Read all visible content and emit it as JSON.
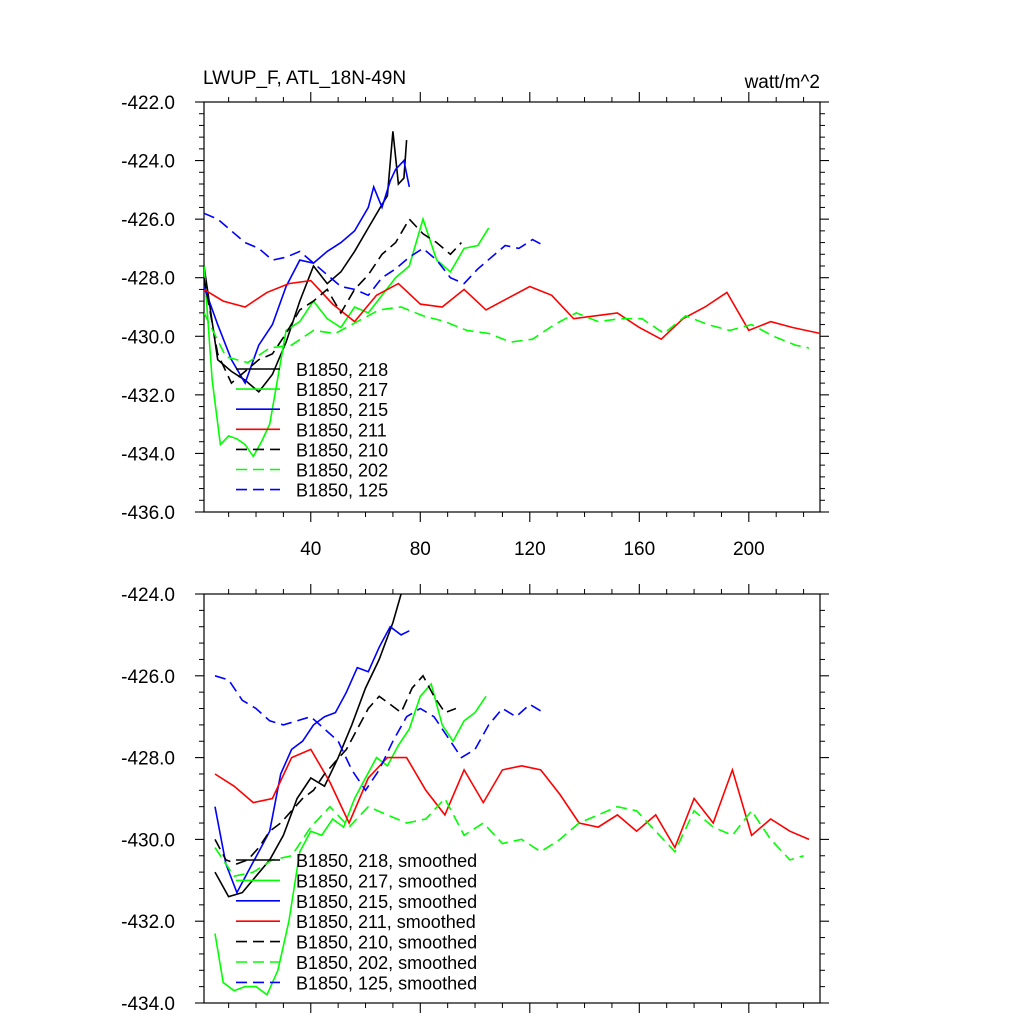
{
  "header": {
    "title": "LWUP_F, ATL_18N-49N",
    "units": "watt/m^2"
  },
  "chart_data": [
    {
      "type": "line",
      "xlim": [
        1,
        226
      ],
      "ylim": [
        -436.0,
        -422.0
      ],
      "xticks": [
        40,
        80,
        120,
        160,
        200
      ],
      "xtick_labels": [
        "40",
        "80",
        "120",
        "160",
        "200"
      ],
      "yticks": [
        -436.0,
        -434.0,
        -432.0,
        -430.0,
        -428.0,
        -426.0,
        -424.0,
        -422.0
      ],
      "ytick_labels": [
        "-436.0",
        "-434.0",
        "-432.0",
        "-430.0",
        "-428.0",
        "-426.0",
        "-424.0",
        "-422.0"
      ],
      "legend_position": "lower-left",
      "series": [
        {
          "name": "B1850, 218",
          "color": "#000000",
          "dash": "solid",
          "x": [
            1,
            6,
            11,
            16,
            21,
            26,
            31,
            36,
            41,
            46,
            51,
            56,
            61,
            66,
            68,
            70,
            72,
            74,
            75
          ],
          "y": [
            -427.6,
            -430.8,
            -431.2,
            -431.5,
            -431.9,
            -431.3,
            -430.2,
            -428.8,
            -427.6,
            -428.2,
            -427.8,
            -427.1,
            -426.3,
            -425.5,
            -425.2,
            -423.0,
            -424.8,
            -424.6,
            -423.3
          ]
        },
        {
          "name": "B1850, 217",
          "color": "#00ff00",
          "dash": "solid",
          "x": [
            1,
            4,
            7,
            10,
            13,
            16,
            19,
            22,
            25,
            28,
            31,
            36,
            41,
            46,
            51,
            56,
            61,
            66,
            71,
            76,
            81,
            86,
            91,
            96,
            101,
            105
          ],
          "y": [
            -427.6,
            -431.5,
            -433.7,
            -433.4,
            -433.5,
            -433.7,
            -434.1,
            -433.6,
            -433.0,
            -431.4,
            -429.8,
            -429.5,
            -428.8,
            -429.4,
            -429.7,
            -429.0,
            -429.2,
            -428.6,
            -428.0,
            -427.6,
            -426.0,
            -427.4,
            -427.8,
            -427.0,
            -426.9,
            -426.3
          ]
        },
        {
          "name": "B1850, 215",
          "color": "#0000ff",
          "dash": "solid",
          "x": [
            1,
            6,
            11,
            16,
            21,
            26,
            31,
            36,
            41,
            46,
            51,
            56,
            61,
            63,
            66,
            69,
            71,
            74,
            76
          ],
          "y": [
            -428.3,
            -429.6,
            -430.8,
            -431.6,
            -430.3,
            -429.6,
            -428.3,
            -427.4,
            -427.5,
            -427.1,
            -426.8,
            -426.4,
            -425.6,
            -424.9,
            -425.6,
            -424.7,
            -424.3,
            -424.0,
            -424.9
          ]
        },
        {
          "name": "B1850, 211",
          "color": "#ff0000",
          "dash": "solid",
          "x": [
            1,
            8,
            16,
            24,
            32,
            40,
            48,
            56,
            64,
            72,
            80,
            88,
            96,
            104,
            112,
            120,
            128,
            136,
            144,
            152,
            160,
            168,
            176,
            184,
            192,
            200,
            208,
            216,
            226
          ],
          "y": [
            -428.4,
            -428.8,
            -429.0,
            -428.5,
            -428.2,
            -428.1,
            -428.9,
            -429.5,
            -428.6,
            -428.2,
            -428.9,
            -429.0,
            -428.4,
            -429.1,
            -428.7,
            -428.3,
            -428.6,
            -429.4,
            -429.3,
            -429.2,
            -429.7,
            -430.1,
            -429.4,
            -429.0,
            -428.5,
            -429.8,
            -429.5,
            -429.7,
            -429.9
          ]
        },
        {
          "name": "B1850, 210",
          "color": "#000000",
          "dash": "dashed",
          "x": [
            1,
            6,
            11,
            16,
            21,
            26,
            31,
            36,
            41,
            46,
            51,
            56,
            61,
            66,
            71,
            76,
            81,
            86,
            91,
            95
          ],
          "y": [
            -428.0,
            -430.6,
            -431.6,
            -431.2,
            -430.8,
            -430.6,
            -429.9,
            -429.1,
            -428.8,
            -428.4,
            -429.2,
            -428.4,
            -427.9,
            -427.2,
            -426.8,
            -426.0,
            -426.5,
            -426.8,
            -427.2,
            -426.8
          ]
        },
        {
          "name": "B1850, 202",
          "color": "#00ff00",
          "dash": "dashed",
          "x": [
            1,
            9,
            17,
            25,
            33,
            41,
            49,
            57,
            65,
            73,
            81,
            89,
            97,
            105,
            113,
            121,
            129,
            137,
            145,
            153,
            161,
            169,
            177,
            185,
            193,
            201,
            209,
            217,
            222
          ],
          "y": [
            -429.2,
            -430.7,
            -430.9,
            -430.4,
            -430.3,
            -429.8,
            -429.9,
            -429.5,
            -429.1,
            -429.0,
            -429.3,
            -429.5,
            -429.8,
            -429.9,
            -430.2,
            -430.1,
            -429.6,
            -429.2,
            -429.5,
            -429.4,
            -429.4,
            -429.9,
            -429.3,
            -429.6,
            -429.8,
            -429.6,
            -430.0,
            -430.3,
            -430.4
          ]
        },
        {
          "name": "B1850, 125",
          "color": "#0000ff",
          "dash": "dashed",
          "x": [
            1,
            6,
            11,
            16,
            21,
            26,
            31,
            36,
            41,
            46,
            51,
            56,
            61,
            66,
            71,
            76,
            81,
            86,
            91,
            96,
            101,
            106,
            111,
            116,
            121,
            125
          ],
          "y": [
            -425.8,
            -426.0,
            -426.4,
            -426.8,
            -427.0,
            -427.4,
            -427.3,
            -427.1,
            -427.5,
            -427.9,
            -428.3,
            -428.4,
            -428.6,
            -428.0,
            -427.7,
            -427.3,
            -427.0,
            -427.4,
            -428.0,
            -428.2,
            -427.7,
            -427.3,
            -426.9,
            -427.0,
            -426.7,
            -426.9
          ]
        }
      ]
    },
    {
      "type": "line",
      "xlim": [
        1,
        226
      ],
      "ylim": [
        -434.0,
        -424.0
      ],
      "xticks": [
        40,
        80,
        120,
        160,
        200
      ],
      "yticks": [
        -434.0,
        -432.0,
        -430.0,
        -428.0,
        -426.0,
        -424.0
      ],
      "ytick_labels": [
        "-434.0",
        "-432.0",
        "-430.0",
        "-428.0",
        "-426.0",
        "-424.0"
      ],
      "legend_position": "lower-left",
      "series": [
        {
          "name": "B1850, 218, smoothed",
          "color": "#000000",
          "dash": "solid",
          "x": [
            5,
            10,
            15,
            20,
            25,
            30,
            35,
            40,
            45,
            50,
            55,
            60,
            65,
            70,
            73
          ],
          "y": [
            -430.8,
            -431.4,
            -431.3,
            -430.9,
            -430.5,
            -429.9,
            -429.0,
            -428.5,
            -428.7,
            -428.0,
            -427.2,
            -426.3,
            -425.6,
            -424.7,
            -424.0
          ]
        },
        {
          "name": "B1850, 217, smoothed",
          "color": "#00ff00",
          "dash": "solid",
          "x": [
            5,
            8,
            12,
            16,
            20,
            24,
            28,
            32,
            36,
            40,
            44,
            48,
            52,
            56,
            60,
            64,
            68,
            72,
            76,
            80,
            84,
            88,
            92,
            96,
            100,
            104
          ],
          "y": [
            -432.3,
            -433.5,
            -433.7,
            -433.6,
            -433.6,
            -433.8,
            -433.2,
            -432.0,
            -430.3,
            -429.8,
            -429.9,
            -429.5,
            -429.7,
            -429.0,
            -428.5,
            -428.0,
            -428.2,
            -427.7,
            -427.3,
            -426.5,
            -426.2,
            -427.2,
            -427.6,
            -427.1,
            -426.9,
            -426.5
          ]
        },
        {
          "name": "B1850, 215, smoothed",
          "color": "#0000ff",
          "dash": "solid",
          "x": [
            5,
            9,
            13,
            17,
            21,
            25,
            29,
            33,
            37,
            41,
            45,
            49,
            53,
            57,
            61,
            65,
            69,
            73,
            76
          ],
          "y": [
            -429.2,
            -430.6,
            -431.3,
            -430.8,
            -430.3,
            -429.8,
            -428.4,
            -427.8,
            -427.6,
            -427.2,
            -427.0,
            -426.9,
            -426.4,
            -425.8,
            -425.9,
            -425.3,
            -424.8,
            -425.0,
            -424.9
          ]
        },
        {
          "name": "B1850, 211, smoothed",
          "color": "#ff0000",
          "dash": "solid",
          "x": [
            5,
            12,
            19,
            26,
            33,
            40,
            47,
            54,
            61,
            68,
            75,
            82,
            89,
            96,
            103,
            110,
            117,
            124,
            131,
            138,
            145,
            152,
            159,
            166,
            173,
            180,
            187,
            194,
            201,
            208,
            215,
            222
          ],
          "y": [
            -428.4,
            -428.7,
            -429.1,
            -429.0,
            -428.0,
            -427.8,
            -428.6,
            -429.6,
            -428.5,
            -428.0,
            -428.0,
            -428.8,
            -429.4,
            -428.3,
            -429.1,
            -428.3,
            -428.2,
            -428.3,
            -428.9,
            -429.6,
            -429.7,
            -429.4,
            -429.8,
            -429.4,
            -430.2,
            -429.0,
            -429.6,
            -428.3,
            -429.9,
            -429.5,
            -429.8,
            -430.0
          ]
        },
        {
          "name": "B1850, 210, smoothed",
          "color": "#000000",
          "dash": "dashed",
          "x": [
            5,
            9,
            13,
            17,
            21,
            25,
            29,
            33,
            37,
            41,
            45,
            49,
            53,
            57,
            61,
            65,
            69,
            73,
            77,
            81,
            85,
            89,
            93
          ],
          "y": [
            -430.0,
            -430.5,
            -430.6,
            -430.5,
            -430.2,
            -429.8,
            -429.6,
            -429.3,
            -429.0,
            -428.8,
            -428.4,
            -428.1,
            -427.8,
            -427.3,
            -426.8,
            -426.5,
            -426.7,
            -426.9,
            -426.3,
            -426.0,
            -426.5,
            -426.9,
            -426.8
          ]
        },
        {
          "name": "B1850, 202, smoothed",
          "color": "#00ff00",
          "dash": "dashed",
          "x": [
            5,
            12,
            19,
            26,
            33,
            40,
            47,
            54,
            61,
            68,
            75,
            82,
            89,
            96,
            103,
            110,
            117,
            124,
            131,
            138,
            145,
            152,
            159,
            166,
            173,
            180,
            187,
            194,
            201,
            208,
            215,
            220
          ],
          "y": [
            -430.2,
            -430.9,
            -430.8,
            -430.5,
            -430.4,
            -429.7,
            -429.2,
            -429.7,
            -429.2,
            -429.4,
            -429.6,
            -429.5,
            -429.0,
            -429.9,
            -429.6,
            -430.1,
            -430.0,
            -430.3,
            -430.0,
            -429.6,
            -429.4,
            -429.2,
            -429.3,
            -429.8,
            -430.3,
            -429.3,
            -429.7,
            -429.9,
            -429.3,
            -430.0,
            -430.5,
            -430.4
          ]
        },
        {
          "name": "B1850, 125, smoothed",
          "color": "#0000ff",
          "dash": "dashed",
          "x": [
            5,
            10,
            15,
            20,
            25,
            30,
            35,
            40,
            45,
            50,
            55,
            60,
            65,
            70,
            75,
            80,
            85,
            90,
            95,
            100,
            105,
            110,
            115,
            120,
            125
          ],
          "y": [
            -426.0,
            -426.1,
            -426.6,
            -426.8,
            -427.1,
            -427.2,
            -427.1,
            -427.0,
            -427.3,
            -427.6,
            -428.3,
            -428.8,
            -428.3,
            -427.6,
            -427.0,
            -426.8,
            -427.0,
            -427.5,
            -428.0,
            -427.8,
            -427.2,
            -426.8,
            -427.0,
            -426.7,
            -426.9
          ]
        }
      ]
    }
  ]
}
